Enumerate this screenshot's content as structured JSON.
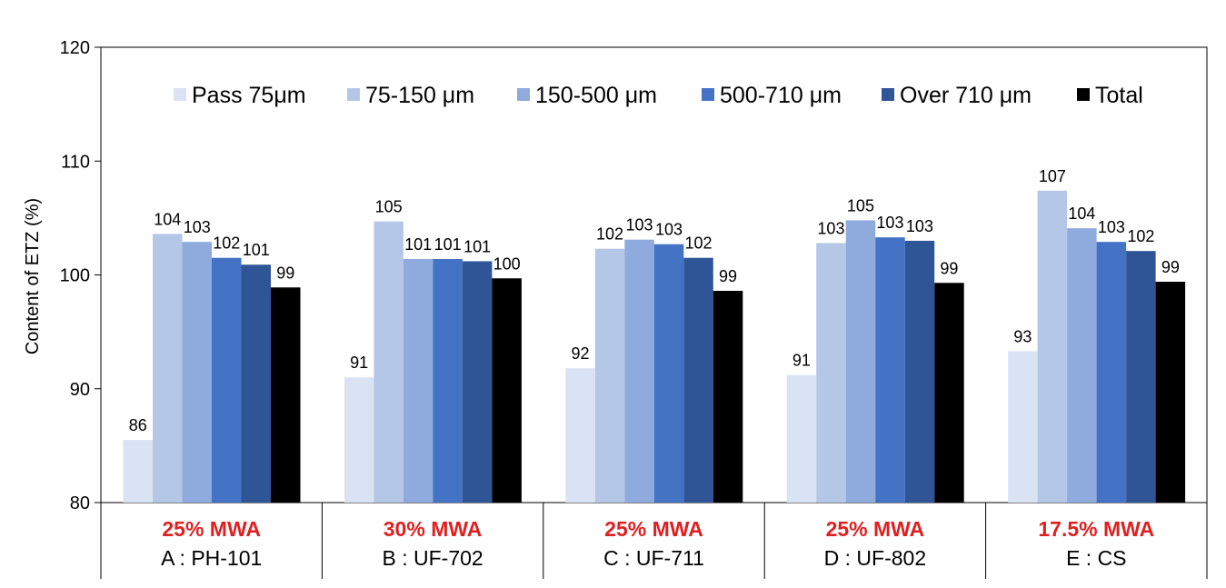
{
  "chart_data": {
    "type": "bar",
    "ylabel": "Content of ETZ (%)",
    "ylim": [
      80,
      120
    ],
    "yticks": [
      "80",
      "90",
      "100",
      "110",
      "120"
    ],
    "ytick_values": [
      80,
      90,
      100,
      110,
      120
    ],
    "grid": false,
    "legend_position": "top",
    "categories": [
      {
        "top": "25% MWA",
        "bottom": "A : PH-101"
      },
      {
        "top": "30% MWA",
        "bottom": "B : UF-702"
      },
      {
        "top": "25% MWA",
        "bottom": "C : UF-711"
      },
      {
        "top": "25% MWA",
        "bottom": "D : UF-802"
      },
      {
        "top": "17.5% MWA",
        "bottom": "E : CS"
      }
    ],
    "category_top_color": "#e02020",
    "series": [
      {
        "name": "Pass 75μm",
        "color": "#dae3f3",
        "values": [
          85.5,
          91.0,
          91.8,
          91.2,
          93.3
        ],
        "labels": [
          "86",
          "91",
          "92",
          "91",
          "93"
        ]
      },
      {
        "name": "75-150 μm",
        "color": "#b4c7e7",
        "values": [
          103.6,
          104.7,
          102.3,
          102.8,
          107.4
        ],
        "labels": [
          "104",
          "105",
          "102",
          "103",
          "107"
        ]
      },
      {
        "name": "150-500 μm",
        "color": "#8faadc",
        "values": [
          102.9,
          101.4,
          103.1,
          104.8,
          104.1
        ],
        "labels": [
          "103",
          "101",
          "103",
          "105",
          "104"
        ]
      },
      {
        "name": "500-710 μm",
        "color": "#4472c4",
        "values": [
          101.5,
          101.4,
          102.7,
          103.3,
          102.9
        ],
        "labels": [
          "102",
          "101",
          "103",
          "103",
          "103"
        ]
      },
      {
        "name": "Over 710 μm",
        "color": "#2f5597",
        "values": [
          100.9,
          101.2,
          101.5,
          103.0,
          102.1
        ],
        "labels": [
          "101",
          "101",
          "102",
          "103",
          "102"
        ]
      },
      {
        "name": "Total",
        "color": "#000000",
        "values": [
          98.9,
          99.7,
          98.6,
          99.3,
          99.4
        ],
        "labels": [
          "99",
          "100",
          "99",
          "99",
          "99"
        ]
      }
    ]
  }
}
